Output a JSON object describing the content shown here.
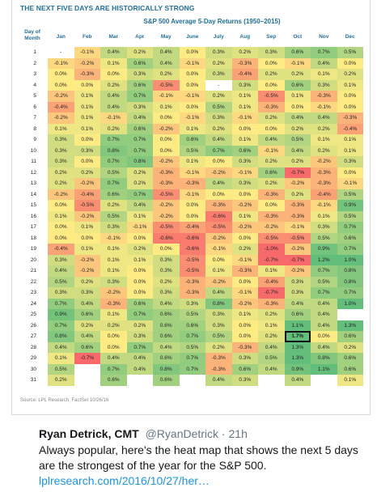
{
  "chart": {
    "title": "THE NEXT FIVE DAYS ARE HISTORICALLY STRONG",
    "subtitle": "S&P 500 Average 5-Day Returns (1950–2015)",
    "source": "Source: LPL Research, FactSet 10/26/16",
    "row_header": [
      "Day of",
      "Month"
    ],
    "highlight": {
      "row": 27,
      "col": "Oct"
    }
  },
  "chart_data": {
    "type": "heatmap",
    "title": "S&P 500 Average 5-Day Returns (1950–2015)",
    "xlabel": "",
    "ylabel": "Day of Month",
    "columns": [
      "Jan",
      "Feb",
      "Mar",
      "Apr",
      "May",
      "June",
      "July",
      "Aug",
      "Sep",
      "Oct",
      "Nov",
      "Dec"
    ],
    "rows": [
      {
        "day": 1,
        "values": [
          "-",
          "-0.1%",
          "0.4%",
          "0.2%",
          "0.4%",
          "0.0%",
          "0.3%",
          "0.2%",
          "0.3%",
          "0.6%",
          "0.7%",
          "0.5%"
        ]
      },
      {
        "day": 2,
        "values": [
          "-0.1%",
          "-0.2%",
          "0.1%",
          "0.6%",
          "0.4%",
          "-0.1%",
          "0.2%",
          "-0.3%",
          "0.0%",
          "-0.1%",
          "0.4%",
          "0.0%"
        ]
      },
      {
        "day": 3,
        "values": [
          "0.0%",
          "-0.3%",
          "0.0%",
          "0.3%",
          "0.2%",
          "0.0%",
          "0.3%",
          "-0.4%",
          "0.2%",
          "0.2%",
          "0.1%",
          "0.2%"
        ]
      },
      {
        "day": 4,
        "values": [
          "0.0%",
          "0.0%",
          "0.2%",
          "0.6%",
          "-0.5%",
          "0.0%",
          "-",
          "0.3%",
          "0.0%",
          "0.6%",
          "0.3%",
          "0.1%"
        ]
      },
      {
        "day": 5,
        "values": [
          "-0.2%",
          "0.1%",
          "0.4%",
          "0.7%",
          "-0.1%",
          "-0.1%",
          "0.2%",
          "0.1%",
          "-0.5%",
          "0.1%",
          "-0.3%",
          "0.0%"
        ]
      },
      {
        "day": 6,
        "values": [
          "-0.4%",
          "0.1%",
          "0.4%",
          "0.3%",
          "0.1%",
          "0.0%",
          "0.5%",
          "0.1%",
          "-0.3%",
          "0.0%",
          "-0.1%",
          "0.0%"
        ]
      },
      {
        "day": 7,
        "values": [
          "-0.2%",
          "0.1%",
          "-0.1%",
          "0.4%",
          "0.0%",
          "-0.1%",
          "0.3%",
          "-0.1%",
          "0.2%",
          "0.4%",
          "0.4%",
          "-0.3%"
        ]
      },
      {
        "day": 8,
        "values": [
          "0.1%",
          "0.1%",
          "0.2%",
          "0.6%",
          "-0.2%",
          "0.1%",
          "0.2%",
          "0.0%",
          "0.0%",
          "0.2%",
          "0.2%",
          "-0.4%"
        ]
      },
      {
        "day": 9,
        "values": [
          "0.3%",
          "0.0%",
          "0.7%",
          "0.7%",
          "0.0%",
          "0.6%",
          "0.4%",
          "0.1%",
          "0.4%",
          "0.5%",
          "0.1%",
          "0.1%"
        ]
      },
      {
        "day": 10,
        "values": [
          "0.3%",
          "0.3%",
          "0.8%",
          "0.7%",
          "0.0%",
          "0.5%",
          "0.7%",
          "0.6%",
          "-0.1%",
          "0.4%",
          "0.2%",
          "0.1%"
        ]
      },
      {
        "day": 11,
        "values": [
          "0.3%",
          "0.0%",
          "0.7%",
          "0.8%",
          "-0.2%",
          "0.1%",
          "0.0%",
          "0.3%",
          "0.2%",
          "0.2%",
          "-0.2%",
          "0.3%"
        ]
      },
      {
        "day": 12,
        "values": [
          "0.2%",
          "0.2%",
          "0.5%",
          "0.2%",
          "-0.3%",
          "-0.1%",
          "-0.2%",
          "-0.1%",
          "0.6%",
          "-0.7%",
          "-0.3%",
          "0.0%"
        ]
      },
      {
        "day": 13,
        "values": [
          "0.2%",
          "-0.2%",
          "0.7%",
          "0.2%",
          "-0.3%",
          "-0.3%",
          "0.4%",
          "0.3%",
          "0.2%",
          "-0.2%",
          "-0.3%",
          "-0.1%"
        ]
      },
      {
        "day": 14,
        "values": [
          "-0.2%",
          "-0.4%",
          "0.6%",
          "0.7%",
          "-0.5%",
          "-0.1%",
          "0.0%",
          "0.0%",
          "-0.3%",
          "0.2%",
          "-0.4%",
          "0.5%"
        ]
      },
      {
        "day": 15,
        "values": [
          "0.0%",
          "-0.5%",
          "0.2%",
          "0.4%",
          "-0.2%",
          "0.0%",
          "-0.3%",
          "-0.2%",
          "0.0%",
          "-0.3%",
          "-0.1%",
          "0.9%"
        ]
      },
      {
        "day": 16,
        "values": [
          "0.1%",
          "-0.2%",
          "0.5%",
          "0.1%",
          "-0.2%",
          "0.0%",
          "-0.6%",
          "0.1%",
          "-0.3%",
          "-0.3%",
          "0.1%",
          "0.5%"
        ]
      },
      {
        "day": 17,
        "values": [
          "0.0%",
          "0.1%",
          "0.3%",
          "-0.1%",
          "-0.5%",
          "-0.4%",
          "-0.5%",
          "-0.2%",
          "-0.2%",
          "-0.1%",
          "0.3%",
          "0.7%"
        ]
      },
      {
        "day": 18,
        "values": [
          "0.0%",
          "0.0%",
          "-0.1%",
          "0.0%",
          "-0.6%",
          "-0.6%",
          "-0.2%",
          "0.0%",
          "-0.5%",
          "-0.5%",
          "0.5%",
          "0.6%"
        ]
      },
      {
        "day": 19,
        "values": [
          "-0.4%",
          "0.1%",
          "0.1%",
          "0.2%",
          "0.0%",
          "-0.6%",
          "-0.1%",
          "0.2%",
          "-1.0%",
          "-0.2%",
          "0.9%",
          "0.7%"
        ]
      },
      {
        "day": 20,
        "values": [
          "0.3%",
          "-0.2%",
          "0.1%",
          "0.1%",
          "0.3%",
          "-0.5%",
          "0.0%",
          "-0.1%",
          "-0.7%",
          "-0.7%",
          "1.2%",
          "1.0%"
        ]
      },
      {
        "day": 21,
        "values": [
          "0.4%",
          "-0.2%",
          "0.1%",
          "0.0%",
          "0.3%",
          "-0.5%",
          "0.1%",
          "-0.3%",
          "0.1%",
          "-0.2%",
          "0.7%",
          "0.8%"
        ]
      },
      {
        "day": 22,
        "values": [
          "0.5%",
          "0.2%",
          "0.3%",
          "0.0%",
          "0.2%",
          "-0.3%",
          "-0.2%",
          "0.0%",
          "-0.4%",
          "0.3%",
          "0.5%",
          "0.8%"
        ]
      },
      {
        "day": 23,
        "values": [
          "0.3%",
          "0.3%",
          "-0.2%",
          "0.0%",
          "0.3%",
          "-0.3%",
          "0.4%",
          "-0.1%",
          "-0.7%",
          "0.3%",
          "0.7%",
          "0.7%"
        ]
      },
      {
        "day": 24,
        "values": [
          "0.7%",
          "0.4%",
          "-0.3%",
          "0.6%",
          "0.4%",
          "0.3%",
          "0.8%",
          "-0.2%",
          "-0.3%",
          "0.4%",
          "0.4%",
          "1.0%"
        ]
      },
      {
        "day": 25,
        "values": [
          "0.9%",
          "0.6%",
          "0.1%",
          "0.7%",
          "0.6%",
          "0.5%",
          "0.3%",
          "0.1%",
          "0.2%",
          "0.6%",
          "0.4%",
          ""
        ]
      },
      {
        "day": 26,
        "values": [
          "0.7%",
          "0.2%",
          "0.2%",
          "0.2%",
          "0.6%",
          "0.6%",
          "0.3%",
          "0.0%",
          "0.1%",
          "1.1%",
          "0.4%",
          "1.3%"
        ]
      },
      {
        "day": 27,
        "values": [
          "0.8%",
          "0.4%",
          "0.0%",
          "0.3%",
          "0.6%",
          "0.7%",
          "0.5%",
          "0.0%",
          "0.2%",
          "1.7%",
          "0.0%",
          "0.6%"
        ]
      },
      {
        "day": 28,
        "values": [
          "0.4%",
          "0.6%",
          "0.0%",
          "0.7%",
          "0.4%",
          "0.5%",
          "0.2%",
          "-0.3%",
          "0.4%",
          "1.3%",
          "0.4%",
          "0.2%"
        ]
      },
      {
        "day": 29,
        "values": [
          "0.1%",
          "-0.7%",
          "0.4%",
          "0.4%",
          "0.6%",
          "0.7%",
          "-0.3%",
          "0.3%",
          "0.5%",
          "1.3%",
          "0.8%",
          "0.6%"
        ]
      },
      {
        "day": 30,
        "values": [
          "0.5%",
          "",
          "0.7%",
          "0.4%",
          "0.8%",
          "0.7%",
          "-0.3%",
          "0.6%",
          "0.4%",
          "0.9%",
          "1.1%",
          "0.6%"
        ]
      },
      {
        "day": 31,
        "values": [
          "0.2%",
          "",
          "0.6%",
          "",
          "0.6%",
          "",
          "0.4%",
          "0.3%",
          "",
          "0.4%",
          "",
          "0.1%"
        ]
      }
    ]
  },
  "tweet": {
    "author_name": "Ryan Detrick, CMT",
    "handle": "@RyanDetrick",
    "time": "21h",
    "text": "Always popular, here's the heat map that shows the next 5 days are the strongest of the year for the S&P 500. ",
    "link": "lplresearch.com/2016/10/27/her…"
  },
  "colors": {
    "title_blue": "#1f6e9a",
    "strong_positive": "#63be7b",
    "neutral": "#ffeb84",
    "strong_negative": "#f8696b",
    "link_blue": "#1b95e0"
  }
}
